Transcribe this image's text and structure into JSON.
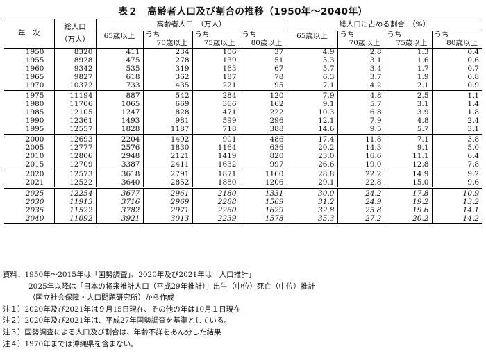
{
  "title": "表２　高齢者人口及び割合の推移（1950年～2040年）",
  "header": {
    "year": "年　次",
    "total_line1": "総人口",
    "total_line2": "（万人）",
    "group_elderly": "高齢者人口　（万人）",
    "group_ratio": "総人口に占める割合　（%）",
    "sub": [
      "65歳以上",
      "うち",
      "70歳以上",
      "うち",
      "75歳以上",
      "うち",
      "80歳以上"
    ],
    "ratio_sub": [
      "65歳以上",
      "うち",
      "70歳以上",
      "うち",
      "75歳以上",
      "うち",
      "80歳以上"
    ]
  },
  "rows": [
    {
      "year": "1950",
      "total": "8320",
      "e65": "411",
      "e70": "234",
      "e75": "106",
      "e80": "37",
      "r65": "4.9",
      "r70": "2.8",
      "r75": "1.3",
      "r80": "0.4"
    },
    {
      "year": "1955",
      "total": "8928",
      "e65": "475",
      "e70": "278",
      "e75": "139",
      "e80": "51",
      "r65": "5.3",
      "r70": "3.1",
      "r75": "1.6",
      "r80": "0.6"
    },
    {
      "year": "1960",
      "total": "9342",
      "e65": "535",
      "e70": "319",
      "e75": "163",
      "e80": "67",
      "r65": "5.7",
      "r70": "3.4",
      "r75": "1.7",
      "r80": "0.7"
    },
    {
      "year": "1965",
      "total": "9827",
      "e65": "618",
      "e70": "362",
      "e75": "187",
      "e80": "78",
      "r65": "6.3",
      "r70": "3.7",
      "r75": "1.9",
      "r80": "0.8"
    },
    {
      "year": "1970",
      "total": "10372",
      "e65": "733",
      "e70": "435",
      "e75": "221",
      "e80": "95",
      "r65": "7.1",
      "r70": "4.2",
      "r75": "2.1",
      "r80": "0.9"
    },
    {
      "year": "1975",
      "total": "11194",
      "e65": "887",
      "e70": "542",
      "e75": "284",
      "e80": "120",
      "r65": "7.9",
      "r70": "4.8",
      "r75": "2.5",
      "r80": "1.1"
    },
    {
      "year": "1980",
      "total": "11706",
      "e65": "1065",
      "e70": "669",
      "e75": "366",
      "e80": "162",
      "r65": "9.1",
      "r70": "5.7",
      "r75": "3.1",
      "r80": "1.4"
    },
    {
      "year": "1985",
      "total": "12105",
      "e65": "1247",
      "e70": "828",
      "e75": "471",
      "e80": "222",
      "r65": "10.3",
      "r70": "6.8",
      "r75": "3.9",
      "r80": "1.8"
    },
    {
      "year": "1990",
      "total": "12361",
      "e65": "1493",
      "e70": "981",
      "e75": "599",
      "e80": "296",
      "r65": "12.1",
      "r70": "7.9",
      "r75": "4.8",
      "r80": "2.4"
    },
    {
      "year": "1995",
      "total": "12557",
      "e65": "1828",
      "e70": "1187",
      "e75": "718",
      "e80": "388",
      "r65": "14.6",
      "r70": "9.5",
      "r75": "5.7",
      "r80": "3.1"
    },
    {
      "year": "2000",
      "total": "12693",
      "e65": "2204",
      "e70": "1492",
      "e75": "901",
      "e80": "486",
      "r65": "17.4",
      "r70": "11.8",
      "r75": "7.1",
      "r80": "3.8"
    },
    {
      "year": "2005",
      "total": "12777",
      "e65": "2576",
      "e70": "1830",
      "e75": "1164",
      "e80": "636",
      "r65": "20.2",
      "r70": "14.3",
      "r75": "9.1",
      "r80": "5.0"
    },
    {
      "year": "2010",
      "total": "12806",
      "e65": "2948",
      "e70": "2121",
      "e75": "1419",
      "e80": "820",
      "r65": "23.0",
      "r70": "16.6",
      "r75": "11.1",
      "r80": "6.4"
    },
    {
      "year": "2015",
      "total": "12709",
      "e65": "3387",
      "e70": "2411",
      "e75": "1632",
      "e80": "997",
      "r65": "26.6",
      "r70": "19.0",
      "r75": "12.8",
      "r80": "7.8"
    },
    {
      "year": "2020",
      "total": "12573",
      "e65": "3618",
      "e70": "2791",
      "e75": "1871",
      "e80": "1160",
      "r65": "28.8",
      "r70": "22.2",
      "r75": "14.9",
      "r80": "9.2"
    },
    {
      "year": "2021",
      "total": "12522",
      "e65": "3640",
      "e70": "2852",
      "e75": "1880",
      "e80": "1206",
      "r65": "29.1",
      "r70": "22.8",
      "r75": "15.0",
      "r80": "9.6"
    },
    {
      "year": "2025",
      "total": "12254",
      "e65": "3677",
      "e70": "2961",
      "e75": "2180",
      "e80": "1331",
      "r65": "30.0",
      "r70": "24.2",
      "r75": "17.8",
      "r80": "10.9"
    },
    {
      "year": "2030",
      "total": "11913",
      "e65": "3716",
      "e70": "2969",
      "e75": "2288",
      "e80": "1569",
      "r65": "31.2",
      "r70": "24.9",
      "r75": "19.2",
      "r80": "13.2"
    },
    {
      "year": "2035",
      "total": "11522",
      "e65": "3782",
      "e70": "2971",
      "e75": "2260",
      "e80": "1629",
      "r65": "32.8",
      "r70": "25.8",
      "r75": "19.6",
      "r80": "14.1"
    },
    {
      "year": "2040",
      "total": "11092",
      "e65": "3921",
      "e70": "3013",
      "e75": "2239",
      "e80": "1578",
      "r65": "35.3",
      "r70": "27.2",
      "r75": "20.2",
      "r80": "14.2"
    }
  ],
  "notes": [
    "資料：1950年～2015年は「国勢調査」、2020年及び2021年は「人口推計」",
    "2025年以降は「日本の将来推計人口（平成29年推計）」出生（中位）死亡（中位）推計",
    "（国立社会保障・人口問題研究所）から作成",
    "注１）2020年及び2021年は９月15日現在、その他の年は10月１日現在",
    "注２）2020年及び2021年は、平成27年国勢調査を基準としている。",
    "注３）国勢調査による人口及び割合は、年齢不詳をあん分した結果",
    "注４）1970年までは沖縄県を含まない。"
  ]
}
